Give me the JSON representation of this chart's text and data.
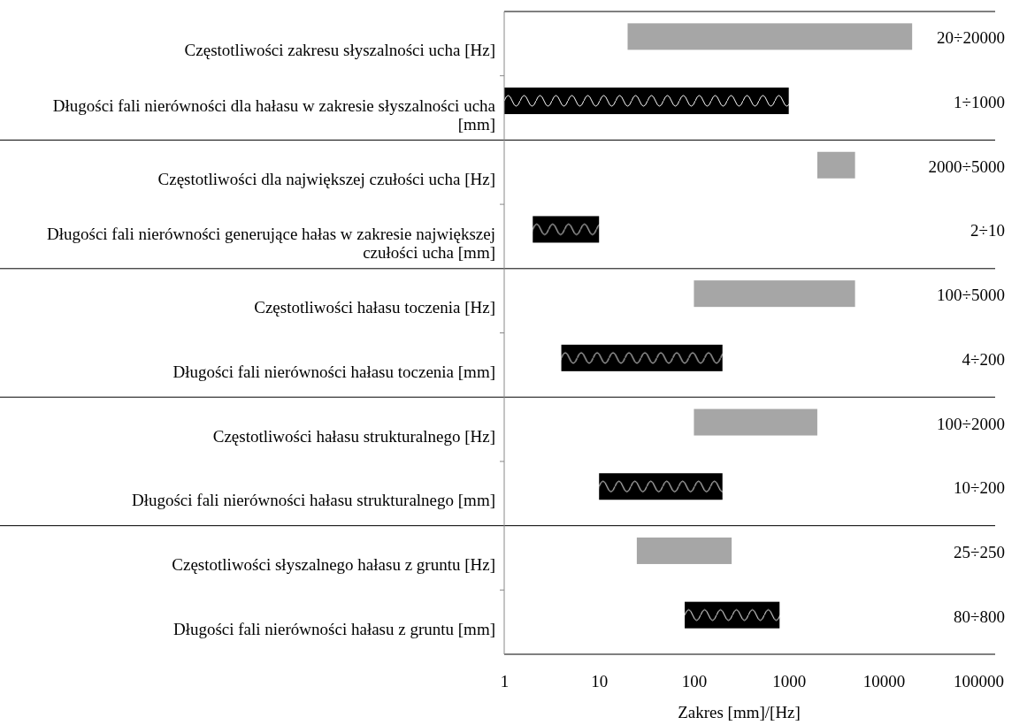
{
  "chart_data": {
    "type": "bar",
    "orientation": "horizontal",
    "log": "x",
    "xlabel": "Zakres [mm]/[Hz]",
    "categories": [
      "Częstotliwości zakresu słyszalności ucha [Hz]",
      "Długości fali nierówności dla hałasu w zakresie słyszalności ucha [mm]",
      "Częstotliwości dla największej czułości ucha [Hz]",
      "Długości fali nierówności generujące hałas w zakresie największej czułości ucha [mm]",
      "Częstotliwości hałasu toczenia [Hz]",
      "Długości fali nierówności hałasu toczenia [mm]",
      "Częstotliwości hałasu strukturalnego [Hz]",
      "Długości fali nierówności hałasu strukturalnego [mm]",
      "Częstotliwości słyszalnego hałasu z gruntu [Hz]",
      "Długości fali nierówności hałasu z gruntu [mm]"
    ],
    "base": [
      20,
      1,
      2000,
      2,
      100,
      4,
      100,
      10,
      25,
      80
    ],
    "values": [
      19980,
      999,
      3000,
      8,
      4900,
      196,
      1900,
      190,
      225,
      720
    ],
    "colors": [
      "#a6a6a6",
      "#000000",
      "#a6a6a6",
      "#000000",
      "#a6a6a6",
      "#000000",
      "#a6a6a6",
      "#000000",
      "#a6a6a6",
      "#000000"
    ],
    "annotations": [
      "20÷20000",
      "1÷1000",
      "2000÷5000",
      "2÷10",
      "100÷5000",
      "4÷200",
      "100÷2000",
      "10÷200",
      "25÷250",
      "80÷800"
    ],
    "xlim": [
      1,
      150000
    ],
    "xticks": [
      1,
      10,
      100,
      1000,
      10000,
      100000
    ],
    "grid": false
  }
}
